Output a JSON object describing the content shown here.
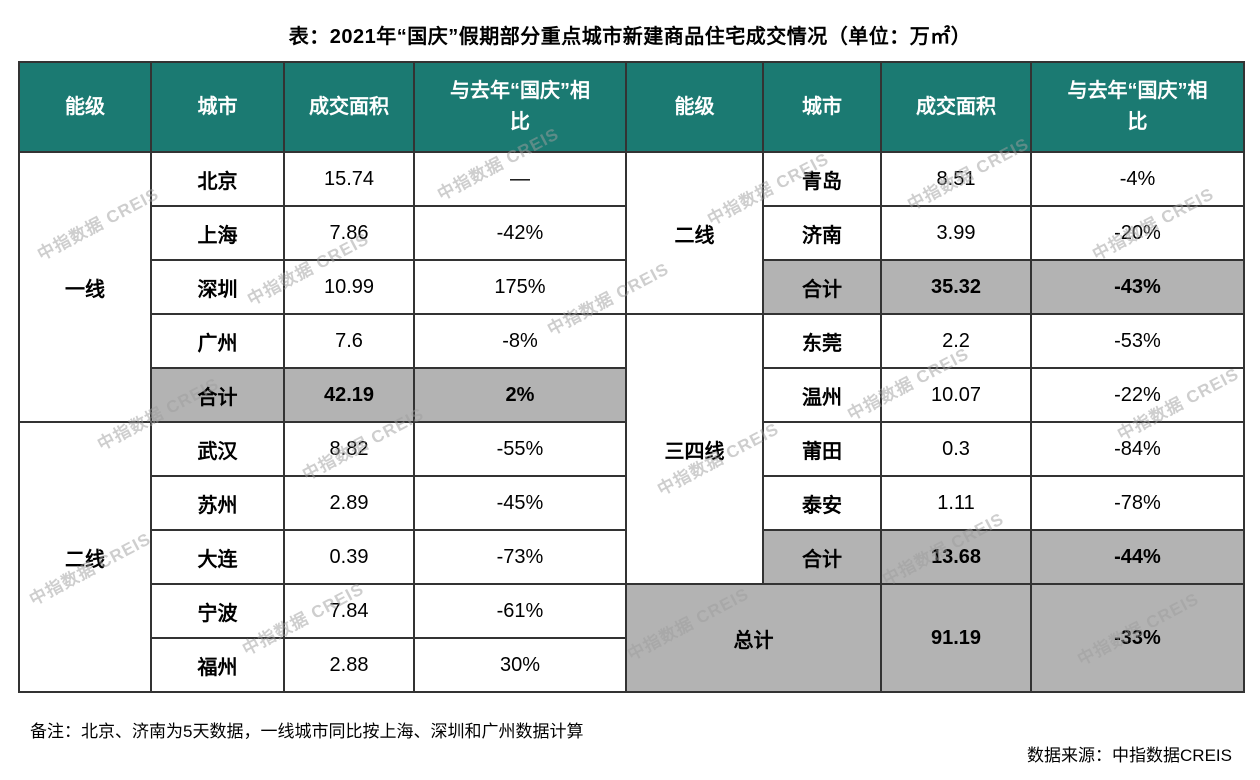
{
  "chart_data": {
    "type": "table",
    "title": "表：2021年“国庆”假期部分重点城市新建商品住宅成交情况（单位：万㎡）",
    "columns": [
      "能级",
      "城市",
      "成交面积",
      "与去年“国庆”相比"
    ],
    "left": {
      "groups": [
        {
          "tier": "一线",
          "rows": [
            {
              "city": "北京",
              "area": "15.74",
              "yoy": "—",
              "subtotal": false
            },
            {
              "city": "上海",
              "area": "7.86",
              "yoy": "-42%",
              "subtotal": false
            },
            {
              "city": "深圳",
              "area": "10.99",
              "yoy": "175%",
              "subtotal": false
            },
            {
              "city": "广州",
              "area": "7.6",
              "yoy": "-8%",
              "subtotal": false
            },
            {
              "city": "合计",
              "area": "42.19",
              "yoy": "2%",
              "subtotal": true
            }
          ]
        },
        {
          "tier": "二线",
          "rows": [
            {
              "city": "武汉",
              "area": "8.82",
              "yoy": "-55%",
              "subtotal": false
            },
            {
              "city": "苏州",
              "area": "2.89",
              "yoy": "-45%",
              "subtotal": false
            },
            {
              "city": "大连",
              "area": "0.39",
              "yoy": "-73%",
              "subtotal": false
            },
            {
              "city": "宁波",
              "area": "7.84",
              "yoy": "-61%",
              "subtotal": false
            },
            {
              "city": "福州",
              "area": "2.88",
              "yoy": "30%",
              "subtotal": false
            }
          ]
        }
      ]
    },
    "right": {
      "groups": [
        {
          "tier": "二线",
          "rows": [
            {
              "city": "青岛",
              "area": "8.51",
              "yoy": "-4%",
              "subtotal": false
            },
            {
              "city": "济南",
              "area": "3.99",
              "yoy": "-20%",
              "subtotal": false
            },
            {
              "city": "合计",
              "area": "35.32",
              "yoy": "-43%",
              "subtotal": true
            }
          ]
        },
        {
          "tier": "三四线",
          "rows": [
            {
              "city": "东莞",
              "area": "2.2",
              "yoy": "-53%",
              "subtotal": false
            },
            {
              "city": "温州",
              "area": "10.07",
              "yoy": "-22%",
              "subtotal": false
            },
            {
              "city": "莆田",
              "area": "0.3",
              "yoy": "-84%",
              "subtotal": false
            },
            {
              "city": "泰安",
              "area": "1.11",
              "yoy": "-78%",
              "subtotal": false
            },
            {
              "city": "合计",
              "area": "13.68",
              "yoy": "-44%",
              "subtotal": true
            }
          ]
        }
      ],
      "total": {
        "label": "总计",
        "area": "91.19",
        "yoy": "-33%"
      }
    }
  },
  "footer": {
    "note": "备注：北京、济南为5天数据，一线城市同比按上海、深圳和广州数据计算",
    "source": "数据来源：中指数据CREIS"
  },
  "watermark": {
    "text": "中指数据 CREIS"
  },
  "colors": {
    "header_bg": "#1b7a72",
    "subtotal_bg": "#b3b3b3",
    "border": "#333333"
  }
}
